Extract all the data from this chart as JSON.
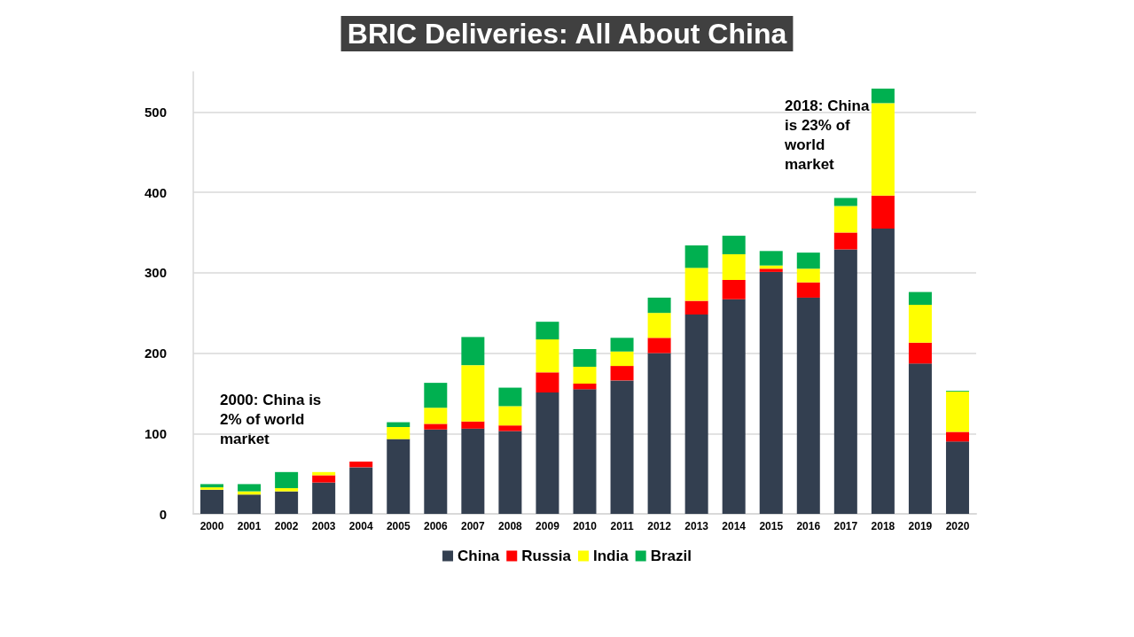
{
  "chart_data": {
    "type": "bar",
    "title": "BRIC Deliveries: All About China",
    "stacked": true,
    "categories": [
      "2000",
      "2001",
      "2002",
      "2003",
      "2004",
      "2005",
      "2006",
      "2007",
      "2008",
      "2009",
      "2010",
      "2011",
      "2012",
      "2013",
      "2014",
      "2015",
      "2016",
      "2017",
      "2018",
      "2019",
      "2020"
    ],
    "series": [
      {
        "name": "China",
        "color": "#333f50",
        "values": [
          30,
          24,
          28,
          39,
          58,
          93,
          105,
          106,
          103,
          151,
          155,
          166,
          200,
          248,
          267,
          301,
          269,
          329,
          355,
          187,
          90
        ]
      },
      {
        "name": "Russia",
        "color": "#ff0000",
        "values": [
          0,
          0,
          0,
          9,
          7,
          0,
          7,
          9,
          7,
          25,
          7,
          18,
          19,
          17,
          24,
          4,
          19,
          21,
          41,
          26,
          12
        ]
      },
      {
        "name": "India",
        "color": "#ffff00",
        "values": [
          3,
          4,
          4,
          4,
          0,
          15,
          20,
          70,
          24,
          41,
          21,
          18,
          31,
          41,
          32,
          4,
          17,
          33,
          115,
          47,
          50
        ]
      },
      {
        "name": "Brazil",
        "color": "#00b050",
        "values": [
          4,
          9,
          20,
          0,
          0,
          6,
          31,
          35,
          23,
          22,
          22,
          17,
          19,
          28,
          23,
          18,
          20,
          10,
          18,
          16,
          1
        ]
      }
    ],
    "ylim": [
      0,
      550
    ],
    "yticks": [
      0,
      100,
      200,
      300,
      400,
      500
    ],
    "grid": "y",
    "legend": "bottom",
    "annotations": [
      "2000: China is 2% of world market",
      "2018: China is 23% of world market"
    ]
  }
}
